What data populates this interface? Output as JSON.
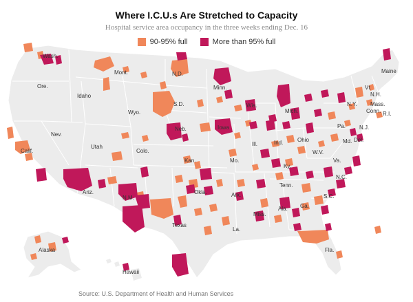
{
  "title": "Where I.C.U.s Are Stretched to Capacity",
  "subtitle": "Hospital service area occupancy in the three weeks ending Dec. 16",
  "legend": [
    {
      "label": "90-95% full",
      "color": "#f0875a"
    },
    {
      "label": "More than 95% full",
      "color": "#c0185a"
    }
  ],
  "colors": {
    "land": "#ececec",
    "border": "#ffffff",
    "orange": "#f0875a",
    "red": "#c0185a"
  },
  "source": "Source: U.S. Department of Health and Human Services",
  "states": [
    "Wash.",
    "Ore.",
    "Idaho",
    "Mont.",
    "N.D.",
    "S.D.",
    "Wyo.",
    "Nev.",
    "Calif.",
    "Utah",
    "Colo.",
    "Neb.",
    "Kan.",
    "Minn.",
    "Iowa",
    "Mo.",
    "Ill.",
    "Wis.",
    "Mich.",
    "Ind.",
    "Ohio",
    "Ky.",
    "Tenn.",
    "Ark.",
    "Okla.",
    "Texas",
    "N.M.",
    "Ariz.",
    "La.",
    "Miss.",
    "Ala.",
    "Ga.",
    "Fla.",
    "S.C.",
    "N.C.",
    "Va.",
    "W.V.",
    "Pa.",
    "N.Y.",
    "N.J.",
    "Del.",
    "Md.",
    "Conn.",
    "R.I.",
    "Mass.",
    "N.H.",
    "Vt.",
    "Maine",
    "Alaska",
    "Hawaii"
  ]
}
